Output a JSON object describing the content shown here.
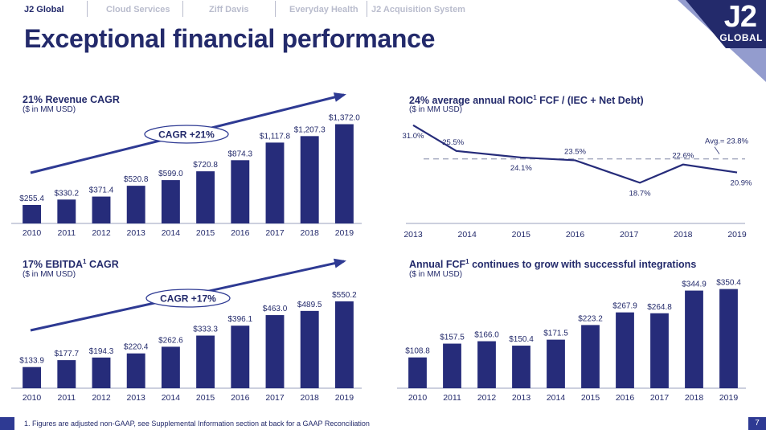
{
  "nav": {
    "items": [
      "J2 Global",
      "Cloud Services",
      "Ziff Davis",
      "Everyday Health",
      "J2 Acquisition System"
    ]
  },
  "title": "Exceptional financial performance",
  "logo": {
    "mark": "J2",
    "word": "GLOBAL"
  },
  "colors": {
    "navy": "#232a6b",
    "bar": "#262c7a",
    "accent": "#2e3a93",
    "muted": "#b9bccd"
  },
  "panels": {
    "revenue": {
      "title": "21% Revenue CAGR",
      "subtitle": "($ in MM USD)"
    },
    "roic": {
      "title_pre": "24% average annual ROIC",
      "title_sup": "1",
      "title_post": " FCF / (IEC + Net Debt)",
      "subtitle": "($ in MM USD)"
    },
    "ebitda": {
      "title_pre": "17% EBITDA",
      "title_sup": "1",
      "title_post": " CAGR",
      "subtitle": "($ in MM USD)"
    },
    "fcf": {
      "title_pre": "Annual FCF",
      "title_sup": "1",
      "title_post": " continues to grow with successful integrations",
      "subtitle": "($ in MM USD)"
    }
  },
  "chart_data": [
    {
      "id": "revenue",
      "type": "bar",
      "title": "21% Revenue CAGR",
      "categories": [
        "2010",
        "2011",
        "2012",
        "2013",
        "2014",
        "2015",
        "2016",
        "2017",
        "2018",
        "2019"
      ],
      "values": [
        255.4,
        330.2,
        371.4,
        520.8,
        599.0,
        720.8,
        874.3,
        1117.8,
        1207.3,
        1372.0
      ],
      "labels": [
        "$255.4",
        "$330.2",
        "$371.4",
        "$520.8",
        "$599.0",
        "$720.8",
        "$874.3",
        "$1,117.8",
        "$1,207.3",
        "$1,372.0"
      ],
      "annotation": "CAGR +21%",
      "ylim": [
        0,
        1400
      ]
    },
    {
      "id": "roic",
      "type": "line",
      "title": "24% average annual ROIC1 FCF / (IEC + Net Debt)",
      "categories": [
        "2013",
        "2014",
        "2015",
        "2016",
        "2017",
        "2018",
        "2019"
      ],
      "points_x": [
        2013.0,
        2013.8,
        2015.0,
        2016.0,
        2017.2,
        2018.0,
        2019.0
      ],
      "values": [
        31.0,
        25.5,
        24.1,
        23.5,
        18.7,
        22.6,
        20.9
      ],
      "labels": [
        "31.0%",
        "25.5%",
        "24.1%",
        "23.5%",
        "18.7%",
        "22.6%",
        "20.9%"
      ],
      "average": 23.8,
      "average_label": "Avg.= 23.8%",
      "ylim": [
        10,
        32
      ]
    },
    {
      "id": "ebitda",
      "type": "bar",
      "title": "17% EBITDA1 CAGR",
      "categories": [
        "2010",
        "2011",
        "2012",
        "2013",
        "2014",
        "2015",
        "2016",
        "2017",
        "2018",
        "2019"
      ],
      "values": [
        133.9,
        177.7,
        194.3,
        220.4,
        262.6,
        333.3,
        396.1,
        463.0,
        489.5,
        550.2
      ],
      "labels": [
        "$133.9",
        "$177.7",
        "$194.3",
        "$220.4",
        "$262.6",
        "$333.3",
        "$396.1",
        "$463.0",
        "$489.5",
        "$550.2"
      ],
      "annotation": "CAGR +17%",
      "ylim": [
        0,
        560
      ]
    },
    {
      "id": "fcf",
      "type": "bar",
      "title": "Annual FCF1 continues to grow with successful integrations",
      "categories": [
        "2010",
        "2011",
        "2012",
        "2013",
        "2014",
        "2015",
        "2016",
        "2017",
        "2018",
        "2019"
      ],
      "values": [
        108.8,
        157.5,
        166.0,
        150.4,
        171.5,
        223.2,
        267.9,
        264.8,
        344.9,
        350.4
      ],
      "labels": [
        "$108.8",
        "$157.5",
        "$166.0",
        "$150.4",
        "$171.5",
        "$223.2",
        "$267.9",
        "$264.8",
        "$344.9",
        "$350.4"
      ],
      "ylim": [
        0,
        355
      ]
    }
  ],
  "footnote": "1. Figures are adjusted non-GAAP, see Supplemental Information section at back for a GAAP Reconciliation",
  "page_number": "7"
}
